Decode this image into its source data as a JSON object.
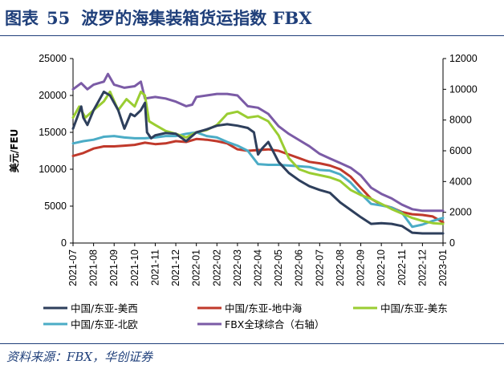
{
  "header": {
    "figure_label": "图表",
    "figure_number": "55",
    "title": "波罗的海集装箱货运指数 FBX"
  },
  "footer": {
    "source": "资料来源：FBX，华创证券"
  },
  "chart_data": {
    "type": "line",
    "ylabel": "美元/FEU",
    "y_left_ticks": [
      "0",
      "5000",
      "10000",
      "15000",
      "20000",
      "25000"
    ],
    "y_right_ticks": [
      "0",
      "2000",
      "4000",
      "6000",
      "8000",
      "10000",
      "12000"
    ],
    "ylim_left": [
      0,
      25000
    ],
    "ylim_right": [
      0,
      12000
    ],
    "x_ticks": [
      "2021-07",
      "2021-08",
      "2021-09",
      "2021-10",
      "2021-11",
      "2021-12",
      "2022-01",
      "2022-02",
      "2022-03",
      "2022-04",
      "2022-05",
      "2022-06",
      "2022-07",
      "2022-08",
      "2022-09",
      "2022-10",
      "2022-11",
      "2022-12",
      "2023-01"
    ],
    "legend_position": "bottom",
    "series": [
      {
        "name": "中国/东亚-美西",
        "color": "#2e3f5c",
        "axis": "left",
        "values": [
          [
            0,
            15500
          ],
          [
            0.2,
            17000
          ],
          [
            0.4,
            18500
          ],
          [
            0.5,
            17000
          ],
          [
            0.7,
            16000
          ],
          [
            1,
            18000
          ],
          [
            1.5,
            20500
          ],
          [
            1.8,
            20000
          ],
          [
            2.2,
            18000
          ],
          [
            2.5,
            15500
          ],
          [
            2.8,
            17500
          ],
          [
            3.0,
            17200
          ],
          [
            3.3,
            18000
          ],
          [
            3.5,
            19000
          ],
          [
            3.6,
            15000
          ],
          [
            3.8,
            14200
          ],
          [
            4,
            14600
          ],
          [
            4.5,
            14900
          ],
          [
            5,
            14800
          ],
          [
            5.5,
            13800
          ],
          [
            6,
            15000
          ],
          [
            6.5,
            15400
          ],
          [
            7,
            15900
          ],
          [
            7.5,
            16100
          ],
          [
            8,
            15900
          ],
          [
            8.5,
            15600
          ],
          [
            8.8,
            15000
          ],
          [
            9.0,
            12000
          ],
          [
            9.2,
            12800
          ],
          [
            9.5,
            13700
          ],
          [
            10,
            11000
          ],
          [
            10.5,
            9500
          ],
          [
            11,
            8500
          ],
          [
            11.5,
            7700
          ],
          [
            12,
            7200
          ],
          [
            12.5,
            6800
          ],
          [
            13,
            5500
          ],
          [
            13.5,
            4500
          ],
          [
            14,
            3500
          ],
          [
            14.5,
            2600
          ],
          [
            15,
            2700
          ],
          [
            15.5,
            2600
          ],
          [
            16,
            2300
          ],
          [
            16.5,
            1400
          ],
          [
            17,
            1300
          ],
          [
            17.5,
            1300
          ],
          [
            18,
            1300
          ]
        ]
      },
      {
        "name": "中国/东亚-地中海",
        "color": "#c0392b",
        "axis": "left",
        "values": [
          [
            0,
            11800
          ],
          [
            0.5,
            12200
          ],
          [
            1,
            12800
          ],
          [
            1.5,
            13100
          ],
          [
            2,
            13100
          ],
          [
            2.5,
            13200
          ],
          [
            3,
            13300
          ],
          [
            3.5,
            13600
          ],
          [
            4,
            13400
          ],
          [
            4.5,
            13500
          ],
          [
            5,
            13800
          ],
          [
            5.5,
            13700
          ],
          [
            6,
            14100
          ],
          [
            6.5,
            14000
          ],
          [
            7,
            13800
          ],
          [
            7.5,
            13500
          ],
          [
            8,
            12700
          ],
          [
            8.5,
            12500
          ],
          [
            9,
            12600
          ],
          [
            9.5,
            12700
          ],
          [
            10,
            12500
          ],
          [
            10.5,
            12000
          ],
          [
            11,
            11500
          ],
          [
            11.5,
            11000
          ],
          [
            12,
            10800
          ],
          [
            12.5,
            10500
          ],
          [
            13,
            10000
          ],
          [
            13.5,
            9000
          ],
          [
            14,
            7500
          ],
          [
            14.5,
            6000
          ],
          [
            15,
            5200
          ],
          [
            15.5,
            4800
          ],
          [
            16,
            4200
          ],
          [
            16.5,
            3900
          ],
          [
            17,
            3800
          ],
          [
            17.5,
            3600
          ],
          [
            18,
            2800
          ]
        ]
      },
      {
        "name": "中国/东亚-美东",
        "color": "#9acd32",
        "axis": "left",
        "values": [
          [
            0,
            17000
          ],
          [
            0.3,
            18500
          ],
          [
            0.6,
            17000
          ],
          [
            1,
            18000
          ],
          [
            1.5,
            19200
          ],
          [
            1.8,
            20500
          ],
          [
            2.2,
            18000
          ],
          [
            2.6,
            19500
          ],
          [
            3,
            18500
          ],
          [
            3.3,
            20500
          ],
          [
            3.5,
            20000
          ],
          [
            3.7,
            16500
          ],
          [
            4,
            16000
          ],
          [
            4.5,
            15200
          ],
          [
            5,
            14800
          ],
          [
            5.5,
            14300
          ],
          [
            6,
            15000
          ],
          [
            6.5,
            15300
          ],
          [
            7,
            16000
          ],
          [
            7.5,
            17500
          ],
          [
            8,
            17800
          ],
          [
            8.5,
            17000
          ],
          [
            9,
            17200
          ],
          [
            9.5,
            16500
          ],
          [
            10,
            14600
          ],
          [
            10.5,
            11500
          ],
          [
            11,
            10000
          ],
          [
            11.5,
            9500
          ],
          [
            12,
            9200
          ],
          [
            12.5,
            8900
          ],
          [
            13,
            8400
          ],
          [
            13.5,
            7200
          ],
          [
            14,
            6500
          ],
          [
            14.5,
            6000
          ],
          [
            15,
            5300
          ],
          [
            15.5,
            4600
          ],
          [
            16,
            4000
          ],
          [
            16.5,
            3400
          ],
          [
            17,
            3000
          ],
          [
            17.5,
            2700
          ],
          [
            18,
            2600
          ]
        ]
      },
      {
        "name": "中国/东亚-北欧",
        "color": "#4bacc6",
        "axis": "left",
        "values": [
          [
            0,
            13500
          ],
          [
            0.5,
            13800
          ],
          [
            1,
            14000
          ],
          [
            1.5,
            14400
          ],
          [
            2,
            14500
          ],
          [
            2.5,
            14300
          ],
          [
            3,
            14200
          ],
          [
            3.5,
            14200
          ],
          [
            4,
            14300
          ],
          [
            4.5,
            14500
          ],
          [
            5,
            14500
          ],
          [
            5.5,
            14800
          ],
          [
            6,
            15000
          ],
          [
            6.5,
            14500
          ],
          [
            7,
            14300
          ],
          [
            7.5,
            13700
          ],
          [
            8,
            13200
          ],
          [
            8.5,
            12500
          ],
          [
            9,
            10700
          ],
          [
            9.5,
            10600
          ],
          [
            10,
            10600
          ],
          [
            10.5,
            10500
          ],
          [
            11,
            10400
          ],
          [
            11.5,
            10300
          ],
          [
            12,
            9900
          ],
          [
            12.5,
            9800
          ],
          [
            13,
            9300
          ],
          [
            13.5,
            8200
          ],
          [
            14,
            6700
          ],
          [
            14.5,
            5300
          ],
          [
            15,
            5100
          ],
          [
            15.5,
            4800
          ],
          [
            16,
            4100
          ],
          [
            16.5,
            2200
          ],
          [
            17,
            2500
          ],
          [
            17.5,
            3000
          ],
          [
            18,
            3400
          ]
        ]
      },
      {
        "name": "FBX全球综合（右轴）",
        "color": "#7b5ba6",
        "axis": "right",
        "values": [
          [
            0,
            10000
          ],
          [
            0.4,
            10400
          ],
          [
            0.7,
            10000
          ],
          [
            1,
            10300
          ],
          [
            1.5,
            10500
          ],
          [
            1.7,
            11000
          ],
          [
            2,
            10300
          ],
          [
            2.5,
            10100
          ],
          [
            3,
            10200
          ],
          [
            3.3,
            10500
          ],
          [
            3.5,
            9400
          ],
          [
            4,
            9500
          ],
          [
            4.5,
            9400
          ],
          [
            5,
            9200
          ],
          [
            5.5,
            8900
          ],
          [
            5.8,
            9000
          ],
          [
            6,
            9500
          ],
          [
            6.5,
            9600
          ],
          [
            7,
            9700
          ],
          [
            7.5,
            9700
          ],
          [
            8,
            9600
          ],
          [
            8.5,
            8900
          ],
          [
            9,
            8800
          ],
          [
            9.5,
            8400
          ],
          [
            10,
            7600
          ],
          [
            10.5,
            7100
          ],
          [
            11,
            6700
          ],
          [
            11.5,
            6300
          ],
          [
            12,
            5800
          ],
          [
            12.5,
            5500
          ],
          [
            13,
            5200
          ],
          [
            13.5,
            4900
          ],
          [
            14,
            4400
          ],
          [
            14.5,
            3600
          ],
          [
            15,
            3200
          ],
          [
            15.5,
            2900
          ],
          [
            16,
            2500
          ],
          [
            16.5,
            2200
          ],
          [
            17,
            2100
          ],
          [
            17.5,
            2100
          ],
          [
            18,
            2100
          ]
        ]
      }
    ]
  }
}
